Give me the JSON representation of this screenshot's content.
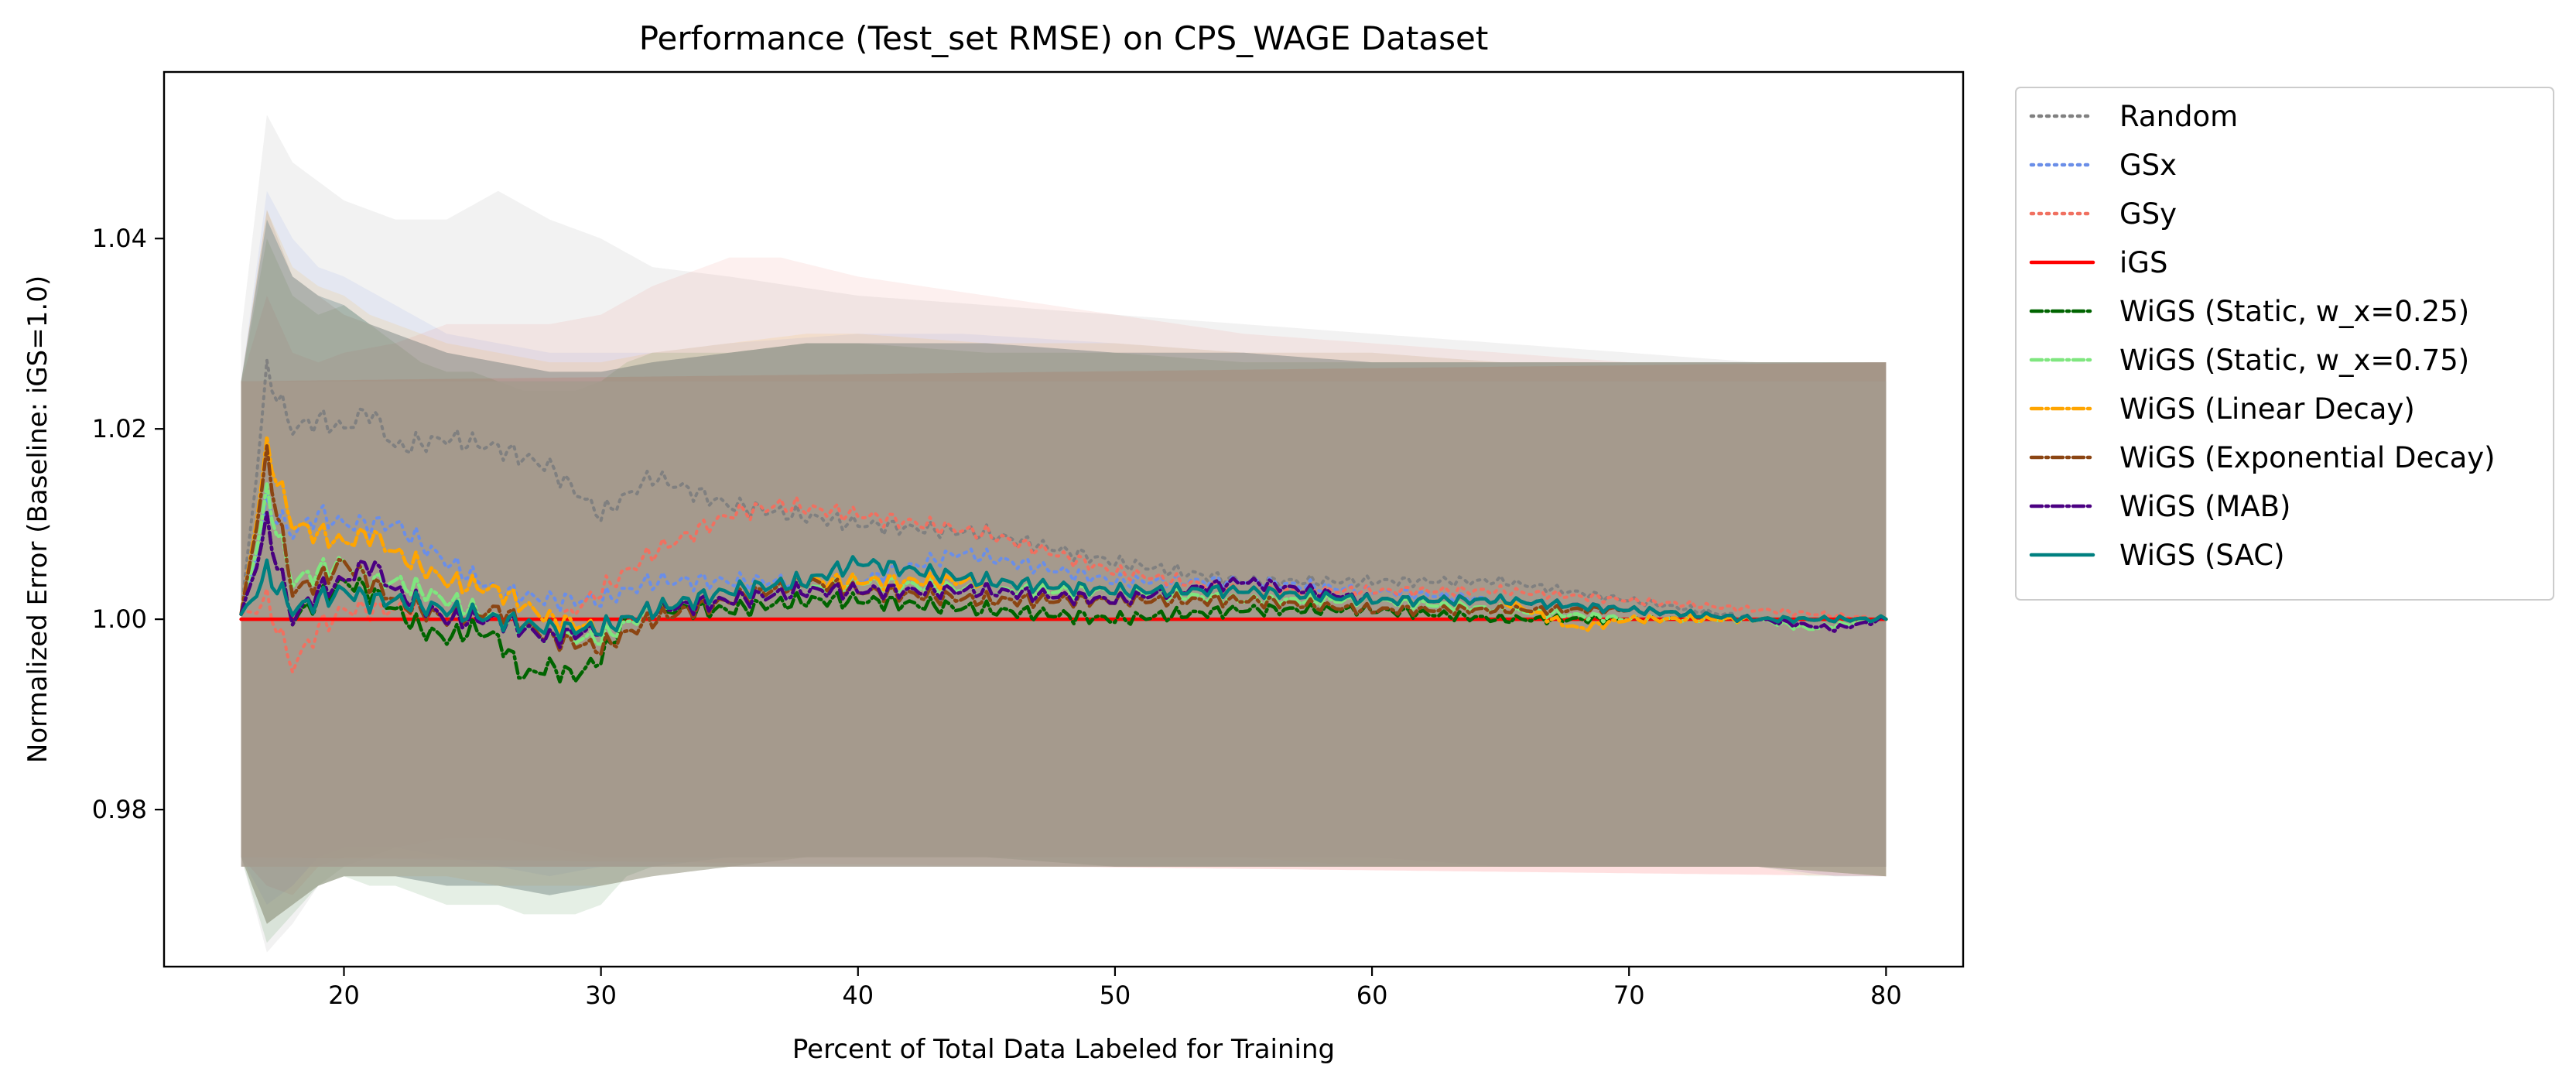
{
  "chart_data": {
    "type": "line",
    "title": "Performance (Test_set RMSE) on CPS_WAGE Dataset",
    "xlabel": "Percent of Total Data Labeled for Training",
    "ylabel": "Normalized Error (Baseline: iGS=1.0)",
    "xlim": [
      13,
      83
    ],
    "ylim": [
      0.9635,
      1.0575
    ],
    "xticks": [
      20,
      30,
      40,
      50,
      60,
      70,
      80
    ],
    "yticks": [
      0.98,
      1.0,
      1.02,
      1.04
    ],
    "xtick_labels": [
      "20",
      "30",
      "40",
      "50",
      "60",
      "70",
      "80"
    ],
    "ytick_labels": [
      "0.98",
      "1.00",
      "1.02",
      "1.04"
    ],
    "grid": false,
    "legend_position": "outside-right",
    "series": [
      {
        "name": "Random",
        "color": "#808080",
        "style": "dotted",
        "x": [
          16,
          17,
          18,
          19,
          20,
          21,
          22,
          24,
          26,
          28,
          30,
          32,
          35,
          40,
          45,
          50,
          55,
          60,
          65,
          70,
          75,
          80
        ],
        "y": [
          1.0,
          1.026,
          1.02,
          1.021,
          1.02,
          1.022,
          1.018,
          1.019,
          1.018,
          1.016,
          1.011,
          1.015,
          1.012,
          1.01,
          1.009,
          1.006,
          1.004,
          1.004,
          1.004,
          1.002,
          1.0,
          1.0
        ],
        "band_lower": [
          0.975,
          0.965,
          0.968,
          0.972,
          0.974,
          0.975,
          0.976,
          0.977,
          0.977,
          0.976,
          0.975,
          0.975,
          0.975,
          0.975,
          0.975,
          0.975,
          0.975,
          0.975,
          0.974,
          0.974,
          0.974,
          0.974
        ],
        "band_upper": [
          1.03,
          1.053,
          1.048,
          1.046,
          1.044,
          1.043,
          1.042,
          1.042,
          1.045,
          1.042,
          1.04,
          1.037,
          1.036,
          1.034,
          1.033,
          1.032,
          1.031,
          1.03,
          1.029,
          1.028,
          1.027,
          1.027
        ]
      },
      {
        "name": "GSx",
        "color": "#6a8ee8",
        "style": "dotted",
        "x": [
          16,
          17,
          18,
          19,
          20,
          22,
          24,
          26,
          28,
          30,
          32,
          35,
          40,
          44,
          50,
          55,
          60,
          65,
          70,
          75,
          80
        ],
        "y": [
          1.0,
          1.012,
          1.009,
          1.011,
          1.01,
          1.01,
          1.006,
          1.003,
          1.002,
          1.002,
          1.004,
          1.004,
          1.004,
          1.007,
          1.004,
          1.004,
          1.003,
          1.002,
          1.001,
          1.0,
          1.0
        ],
        "band_lower": [
          0.975,
          0.97,
          0.972,
          0.975,
          0.976,
          0.976,
          0.975,
          0.974,
          0.973,
          0.974,
          0.974,
          0.975,
          0.975,
          0.975,
          0.975,
          0.975,
          0.975,
          0.974,
          0.974,
          0.974,
          0.974
        ],
        "band_upper": [
          1.025,
          1.045,
          1.04,
          1.037,
          1.036,
          1.033,
          1.03,
          1.029,
          1.028,
          1.028,
          1.028,
          1.029,
          1.03,
          1.03,
          1.029,
          1.028,
          1.028,
          1.027,
          1.027,
          1.027,
          1.027
        ]
      },
      {
        "name": "GSy",
        "color": "#f07060",
        "style": "dotted",
        "x": [
          16,
          17,
          18,
          19,
          20,
          22,
          24,
          26,
          28,
          30,
          32,
          35,
          37,
          40,
          45,
          50,
          55,
          60,
          65,
          70,
          75,
          80
        ],
        "y": [
          1.0,
          1.002,
          0.995,
          0.999,
          1.001,
          1.001,
          1.001,
          1.0,
          0.999,
          1.003,
          1.007,
          1.011,
          1.012,
          1.011,
          1.009,
          1.005,
          1.003,
          1.003,
          1.003,
          1.002,
          1.001,
          1.0
        ],
        "band_lower": [
          0.975,
          0.972,
          0.971,
          0.974,
          0.975,
          0.975,
          0.975,
          0.975,
          0.975,
          0.975,
          0.975,
          0.975,
          0.975,
          0.975,
          0.975,
          0.975,
          0.975,
          0.974,
          0.974,
          0.974,
          0.974,
          0.974
        ],
        "band_upper": [
          1.025,
          1.034,
          1.028,
          1.027,
          1.028,
          1.029,
          1.031,
          1.031,
          1.031,
          1.032,
          1.035,
          1.038,
          1.038,
          1.036,
          1.034,
          1.032,
          1.03,
          1.029,
          1.028,
          1.027,
          1.027,
          1.027
        ]
      },
      {
        "name": "iGS",
        "color": "#ff0000",
        "style": "solid",
        "x": [
          16,
          80
        ],
        "y": [
          1.0,
          1.0
        ],
        "band_lower": [
          0.975,
          0.973
        ],
        "band_upper": [
          1.025,
          1.027
        ]
      },
      {
        "name": "WiGS (Static, w_x=0.25)",
        "color": "#006400",
        "style": "dashdot",
        "x": [
          16,
          17,
          18,
          19,
          20,
          21,
          22,
          23,
          24,
          25,
          26,
          27,
          28,
          29,
          30,
          31,
          32,
          35,
          38,
          40,
          45,
          50,
          55,
          60,
          65,
          70,
          75,
          80
        ],
        "y": [
          1.0,
          1.01,
          1.0,
          1.002,
          1.004,
          1.003,
          1.001,
          0.999,
          0.998,
          0.999,
          0.998,
          0.994,
          0.995,
          0.994,
          0.996,
          1.0,
          1.001,
          1.001,
          1.002,
          1.002,
          1.001,
          1.0,
          1.001,
          1.001,
          1.0,
          1.0,
          1.0,
          1.0
        ],
        "band_lower": [
          0.975,
          0.966,
          0.969,
          0.972,
          0.973,
          0.972,
          0.972,
          0.971,
          0.97,
          0.97,
          0.97,
          0.969,
          0.969,
          0.969,
          0.97,
          0.973,
          0.974,
          0.975,
          0.975,
          0.975,
          0.975,
          0.974,
          0.974,
          0.974,
          0.974,
          0.974,
          0.974,
          0.973
        ],
        "band_upper": [
          1.025,
          1.04,
          1.034,
          1.032,
          1.033,
          1.031,
          1.029,
          1.027,
          1.026,
          1.026,
          1.025,
          1.024,
          1.024,
          1.024,
          1.025,
          1.027,
          1.028,
          1.028,
          1.029,
          1.029,
          1.028,
          1.028,
          1.027,
          1.027,
          1.027,
          1.027,
          1.027,
          1.027
        ]
      },
      {
        "name": "WiGS (Static, w_x=0.75)",
        "color": "#7fe67f",
        "style": "dashdot",
        "x": [
          16,
          17,
          18,
          19,
          20,
          21,
          22,
          24,
          26,
          28,
          30,
          32,
          35,
          38,
          40,
          45,
          50,
          55,
          60,
          65,
          70,
          75,
          77,
          80
        ],
        "y": [
          1.0,
          1.013,
          1.004,
          1.005,
          1.006,
          1.004,
          1.004,
          1.002,
          1.0,
          0.998,
          0.998,
          1.001,
          1.002,
          1.003,
          1.004,
          1.003,
          1.003,
          1.002,
          1.002,
          1.001,
          1.0,
          1.0,
          0.999,
          1.0
        ],
        "band_lower": [
          0.975,
          0.968,
          0.97,
          0.972,
          0.973,
          0.973,
          0.973,
          0.972,
          0.972,
          0.971,
          0.972,
          0.973,
          0.974,
          0.975,
          0.975,
          0.975,
          0.974,
          0.974,
          0.974,
          0.974,
          0.974,
          0.974,
          0.973,
          0.973
        ],
        "band_upper": [
          1.025,
          1.042,
          1.036,
          1.034,
          1.033,
          1.031,
          1.03,
          1.028,
          1.027,
          1.026,
          1.026,
          1.027,
          1.028,
          1.029,
          1.029,
          1.029,
          1.028,
          1.028,
          1.027,
          1.027,
          1.027,
          1.027,
          1.027,
          1.027
        ]
      },
      {
        "name": "WiGS (Linear Decay)",
        "color": "#ffa500",
        "style": "dashdot",
        "x": [
          16,
          17,
          18,
          19,
          20,
          21,
          22,
          24,
          26,
          28,
          30,
          32,
          35,
          38,
          40,
          45,
          50,
          55,
          60,
          65,
          68,
          70,
          75,
          80
        ],
        "y": [
          1.0,
          1.018,
          1.01,
          1.009,
          1.008,
          1.009,
          1.007,
          1.004,
          1.003,
          1.0,
          0.999,
          1.001,
          1.003,
          1.004,
          1.004,
          1.004,
          1.003,
          1.003,
          1.002,
          1.002,
          0.999,
          1.0,
          1.0,
          1.0
        ],
        "band_lower": [
          0.975,
          0.968,
          0.97,
          0.972,
          0.973,
          0.973,
          0.973,
          0.973,
          0.972,
          0.972,
          0.972,
          0.973,
          0.974,
          0.975,
          0.975,
          0.975,
          0.974,
          0.974,
          0.974,
          0.974,
          0.974,
          0.974,
          0.974,
          0.973
        ],
        "band_upper": [
          1.025,
          1.043,
          1.037,
          1.035,
          1.034,
          1.032,
          1.031,
          1.029,
          1.028,
          1.027,
          1.027,
          1.028,
          1.029,
          1.03,
          1.03,
          1.029,
          1.029,
          1.028,
          1.028,
          1.027,
          1.027,
          1.027,
          1.027,
          1.027
        ]
      },
      {
        "name": "WiGS (Exponential Decay)",
        "color": "#8b4513",
        "style": "dashdot",
        "x": [
          16,
          17,
          18,
          19,
          20,
          21,
          22,
          24,
          26,
          28,
          30,
          32,
          35,
          38,
          40,
          45,
          50,
          55,
          60,
          65,
          70,
          75,
          80
        ],
        "y": [
          1.0,
          1.017,
          1.003,
          1.004,
          1.006,
          1.004,
          1.002,
          1.0,
          1.001,
          0.998,
          0.997,
          1.0,
          1.002,
          1.004,
          1.003,
          1.002,
          1.002,
          1.002,
          1.001,
          1.001,
          1.001,
          1.0,
          1.0
        ],
        "band_lower": [
          0.975,
          0.968,
          0.97,
          0.972,
          0.973,
          0.973,
          0.973,
          0.972,
          0.972,
          0.971,
          0.972,
          0.973,
          0.974,
          0.975,
          0.975,
          0.975,
          0.974,
          0.974,
          0.974,
          0.974,
          0.974,
          0.974,
          0.973
        ],
        "band_upper": [
          1.025,
          1.043,
          1.036,
          1.034,
          1.032,
          1.031,
          1.03,
          1.028,
          1.027,
          1.026,
          1.026,
          1.027,
          1.028,
          1.029,
          1.029,
          1.029,
          1.028,
          1.028,
          1.027,
          1.027,
          1.027,
          1.027,
          1.027
        ]
      },
      {
        "name": "WiGS (MAB)",
        "color": "#4b0082",
        "style": "dashdot",
        "x": [
          16,
          17,
          18,
          19,
          20,
          21,
          22,
          24,
          26,
          28,
          30,
          32,
          35,
          38,
          40,
          45,
          50,
          55,
          60,
          65,
          70,
          75,
          78,
          80
        ],
        "y": [
          1.0,
          1.01,
          1.0,
          1.003,
          1.004,
          1.006,
          1.003,
          1.0,
          1.0,
          0.998,
          0.999,
          1.001,
          1.002,
          1.003,
          1.003,
          1.003,
          1.002,
          1.004,
          1.002,
          1.002,
          1.001,
          1.0,
          0.999,
          1.0
        ],
        "band_lower": [
          0.975,
          0.968,
          0.97,
          0.972,
          0.973,
          0.973,
          0.973,
          0.972,
          0.972,
          0.971,
          0.972,
          0.973,
          0.974,
          0.975,
          0.975,
          0.975,
          0.974,
          0.974,
          0.974,
          0.974,
          0.974,
          0.974,
          0.973,
          0.973
        ],
        "band_upper": [
          1.025,
          1.042,
          1.036,
          1.034,
          1.033,
          1.031,
          1.03,
          1.028,
          1.027,
          1.026,
          1.026,
          1.027,
          1.028,
          1.029,
          1.029,
          1.029,
          1.028,
          1.028,
          1.027,
          1.027,
          1.027,
          1.027,
          1.027,
          1.027
        ]
      },
      {
        "name": "WiGS (SAC)",
        "color": "#008080",
        "style": "solid",
        "x": [
          16,
          17,
          18,
          19,
          20,
          21,
          22,
          24,
          26,
          28,
          30,
          32,
          35,
          38,
          40,
          45,
          50,
          55,
          60,
          65,
          70,
          75,
          80
        ],
        "y": [
          1.0,
          1.005,
          1.001,
          1.002,
          1.003,
          1.002,
          1.002,
          1.001,
          1.0,
          0.999,
          0.999,
          1.001,
          1.003,
          1.004,
          1.006,
          1.004,
          1.003,
          1.003,
          1.002,
          1.002,
          1.001,
          1.0,
          1.0
        ],
        "band_lower": [
          0.975,
          0.968,
          0.97,
          0.972,
          0.973,
          0.973,
          0.973,
          0.972,
          0.972,
          0.971,
          0.972,
          0.973,
          0.974,
          0.975,
          0.975,
          0.975,
          0.974,
          0.974,
          0.974,
          0.974,
          0.974,
          0.974,
          0.973
        ],
        "band_upper": [
          1.025,
          1.042,
          1.036,
          1.034,
          1.033,
          1.031,
          1.03,
          1.028,
          1.027,
          1.026,
          1.026,
          1.027,
          1.028,
          1.029,
          1.029,
          1.029,
          1.028,
          1.028,
          1.027,
          1.027,
          1.027,
          1.027,
          1.027
        ]
      }
    ]
  }
}
